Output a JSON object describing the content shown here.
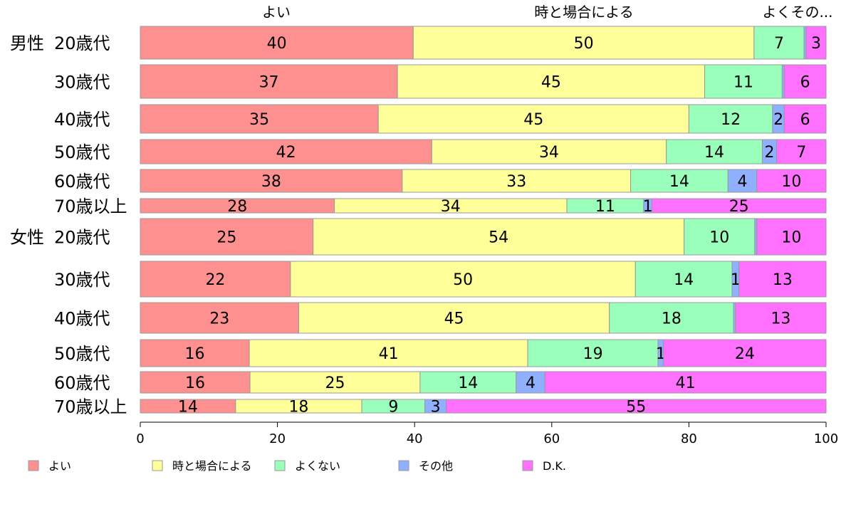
{
  "chart_data": {
    "type": "bar",
    "orientation": "horizontal",
    "stacked": true,
    "percent": true,
    "categories": [
      {
        "group": "男性",
        "label": "20歳代"
      },
      {
        "group": "",
        "label": "30歳代"
      },
      {
        "group": "",
        "label": "40歳代"
      },
      {
        "group": "",
        "label": "50歳代"
      },
      {
        "group": "",
        "label": "60歳代"
      },
      {
        "group": "",
        "label": "70歳以上"
      },
      {
        "group": "女性",
        "label": "20歳代"
      },
      {
        "group": "",
        "label": "30歳代"
      },
      {
        "group": "",
        "label": "40歳代"
      },
      {
        "group": "",
        "label": "50歳代"
      },
      {
        "group": "",
        "label": "60歳代"
      },
      {
        "group": "",
        "label": "70歳以上"
      }
    ],
    "series": [
      {
        "name": "よい",
        "color": "#ff9090",
        "values": [
          39.8,
          37.5,
          34.7,
          42.5,
          38.2,
          28.3,
          25.2,
          21.9,
          23.1,
          15.9,
          16.0,
          13.9
        ],
        "labels": [
          "40",
          "37",
          "35",
          "42",
          "38",
          "28",
          "25",
          "22",
          "23",
          "16",
          "16",
          "14"
        ]
      },
      {
        "name": "時と場合による",
        "color": "#ffff99",
        "values": [
          49.7,
          44.8,
          45.3,
          34.2,
          33.3,
          33.9,
          54.1,
          50.3,
          45.3,
          40.6,
          24.8,
          18.4
        ],
        "labels": [
          "50",
          "45",
          "45",
          "34",
          "33",
          "34",
          "54",
          "50",
          "45",
          "41",
          "25",
          "18"
        ]
      },
      {
        "name": "よくない",
        "color": "#99ffbb",
        "values": [
          7.3,
          11.3,
          12.2,
          14.0,
          14.2,
          11.2,
          10.3,
          14.1,
          18.1,
          19.0,
          14.0,
          9.2
        ],
        "labels": [
          "7",
          "11",
          "12",
          "14",
          "14",
          "11",
          "10",
          "14",
          "18",
          "19",
          "14",
          "9"
        ]
      },
      {
        "name": "その他",
        "color": "#8fb0ff",
        "values": [
          0.3,
          0.3,
          1.7,
          2.1,
          4.2,
          1.2,
          0.3,
          1.0,
          0.3,
          0.8,
          4.2,
          3.1
        ],
        "labels": [
          "",
          "",
          "2",
          "2",
          "4",
          "1",
          "",
          "1",
          "",
          "1",
          "4",
          "3"
        ]
      },
      {
        "name": "D.K.",
        "color": "#ff70ff",
        "values": [
          2.9,
          6.1,
          6.1,
          7.2,
          10.1,
          25.4,
          10.1,
          12.7,
          13.2,
          23.7,
          41.0,
          55.4
        ],
        "labels": [
          "3",
          "6",
          "6",
          "7",
          "10",
          "25",
          "10",
          "13",
          "13",
          "24",
          "41",
          "55"
        ]
      }
    ],
    "top_labels": [
      "よい",
      "時と場合による",
      "よくその..."
    ],
    "xlim": [
      0,
      100
    ],
    "xticks": [
      "0",
      "20",
      "40",
      "60",
      "80",
      "100"
    ],
    "legend": [
      "よい",
      "時と場合による",
      "よくない",
      "その他",
      "D.K."
    ],
    "legend_position": "bottom",
    "grid": false
  }
}
